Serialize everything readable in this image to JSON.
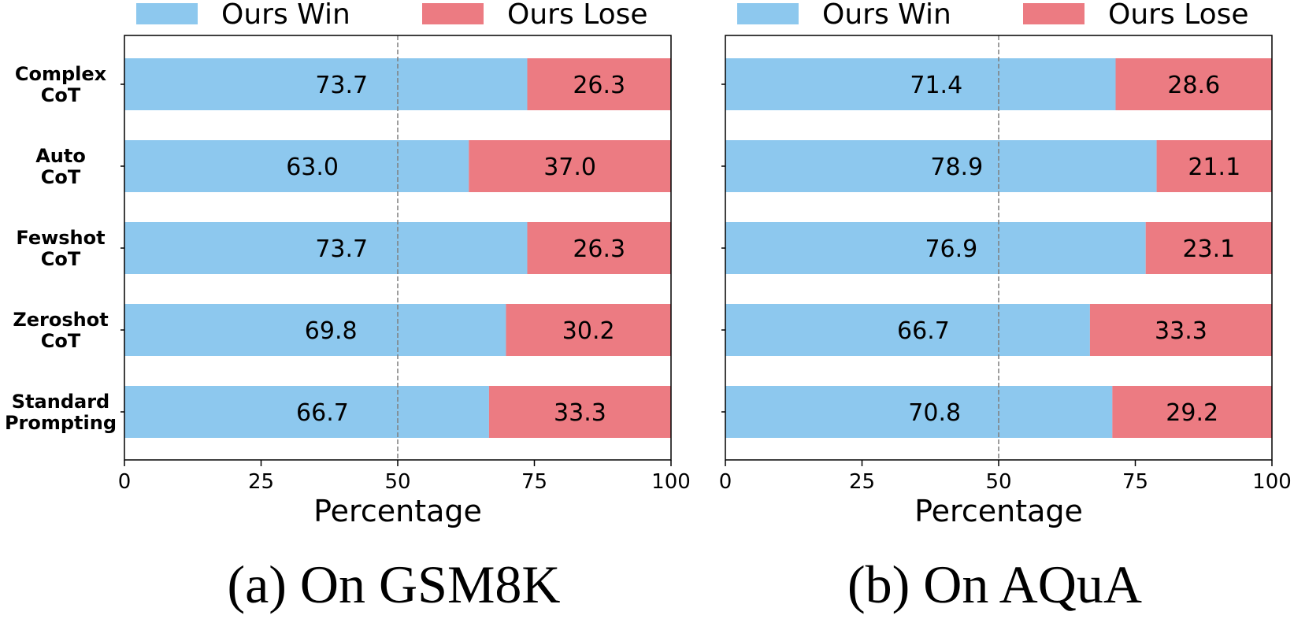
{
  "legend": {
    "win_label": "Ours Win",
    "lose_label": "Ours Lose"
  },
  "colors": {
    "win": "#8dc8ee",
    "lose": "#ec7b82",
    "reference_line": "#7f7f7f",
    "axis": "#000000"
  },
  "chart_data": [
    {
      "type": "bar",
      "orientation": "horizontal",
      "stacked": true,
      "caption": "(a) On GSM8K",
      "categories": [
        "Complex CoT",
        "Auto CoT",
        "Fewshot CoT",
        "Zeroshot CoT",
        "Standard Prompting"
      ],
      "category_label_lines": [
        [
          "Complex",
          "CoT"
        ],
        [
          "Auto",
          "CoT"
        ],
        [
          "Fewshot",
          "CoT"
        ],
        [
          "Zeroshot",
          "CoT"
        ],
        [
          "Standard",
          "Prompting"
        ]
      ],
      "series": [
        {
          "name": "Ours Win",
          "values": [
            73.7,
            63.0,
            73.7,
            69.8,
            66.7
          ]
        },
        {
          "name": "Ours Lose",
          "values": [
            26.3,
            37.0,
            26.3,
            30.2,
            33.3
          ]
        }
      ],
      "data_labels": [
        [
          "73.7",
          "63.0",
          "73.7",
          "69.8",
          "66.7"
        ],
        [
          "26.3",
          "37.0",
          "26.3",
          "30.2",
          "33.3"
        ]
      ],
      "xlabel": "Percentage",
      "ylabel": "",
      "xlim": [
        0,
        100
      ],
      "xticks": [
        0,
        25,
        50,
        75,
        100
      ],
      "reference_line": 50,
      "legend_position": "top",
      "grid": false
    },
    {
      "type": "bar",
      "orientation": "horizontal",
      "stacked": true,
      "caption": "(b) On AQuA",
      "categories": [
        "Complex CoT",
        "Auto CoT",
        "Fewshot CoT",
        "Zeroshot CoT",
        "Standard Prompting"
      ],
      "category_label_lines": [],
      "series": [
        {
          "name": "Ours Win",
          "values": [
            71.4,
            78.9,
            76.9,
            66.7,
            70.8
          ]
        },
        {
          "name": "Ours Lose",
          "values": [
            28.6,
            21.1,
            23.1,
            33.3,
            29.2
          ]
        }
      ],
      "data_labels": [
        [
          "71.4",
          "78.9",
          "76.9",
          "66.7",
          "70.8"
        ],
        [
          "28.6",
          "21.1",
          "23.1",
          "33.3",
          "29.2"
        ]
      ],
      "xlabel": "Percentage",
      "ylabel": "",
      "xlim": [
        0,
        100
      ],
      "xticks": [
        0,
        25,
        50,
        75,
        100
      ],
      "reference_line": 50,
      "legend_position": "top",
      "grid": false
    }
  ]
}
